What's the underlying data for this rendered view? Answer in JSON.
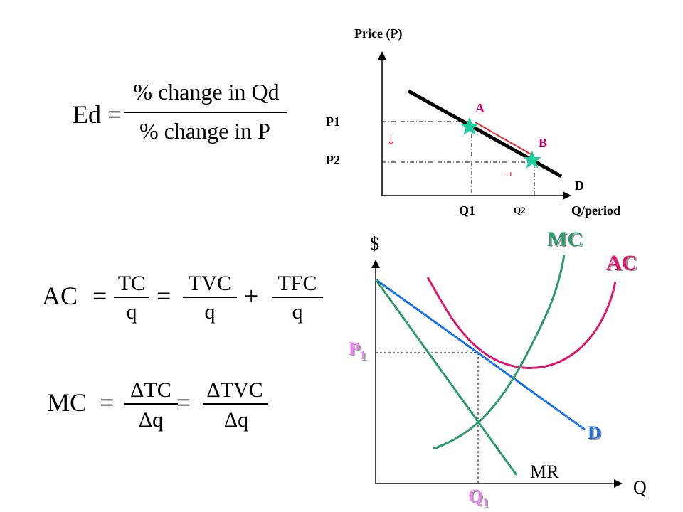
{
  "formulas": {
    "elasticity": {
      "lhs": "Ed =",
      "numerator": "% change in Qd",
      "denominator": "% change in P"
    },
    "average_cost": {
      "lhs": "AC",
      "eq1": "=",
      "f1_num": "TC",
      "f1_den": "q",
      "eq2": "=",
      "f2_num": "TVC",
      "f2_den": "q",
      "plus": "+",
      "f3_num": "TFC",
      "f3_den": "q"
    },
    "marginal_cost": {
      "lhs": "MC",
      "eq1": "=",
      "f1_num": "ΔTC",
      "f1_den": "Δq",
      "eq2": "=",
      "f2_num": "ΔTVC",
      "f2_den": "Δq"
    }
  },
  "demand_graph": {
    "y_axis_label": "Price (P)",
    "x_axis_label": "Q/period",
    "price_labels": [
      "P1",
      "P2"
    ],
    "quantity_labels": [
      "Q1",
      "Q2"
    ],
    "points": [
      "A",
      "B"
    ],
    "curve_label": "D",
    "down_arrow": "↓",
    "right_arrow": "→",
    "colors": {
      "curve": "#000000",
      "star": "#1dcf9f",
      "arrow": "#e8262d",
      "points": "#cc0066"
    }
  },
  "cost_graph": {
    "y_axis_label": "$",
    "x_axis_label": "Q",
    "price_label": "P",
    "price_sub": "1",
    "quantity_label": "Q",
    "quantity_sub": "1",
    "curves": {
      "mc": "MC",
      "ac": "AC",
      "d": "D",
      "mr": "MR"
    },
    "colors": {
      "mc": "#2e9a6c",
      "ac": "#e0156e",
      "d": "#1a73e8",
      "mr": "#2e9a6c",
      "p1_q1": "#ee82ee"
    }
  }
}
